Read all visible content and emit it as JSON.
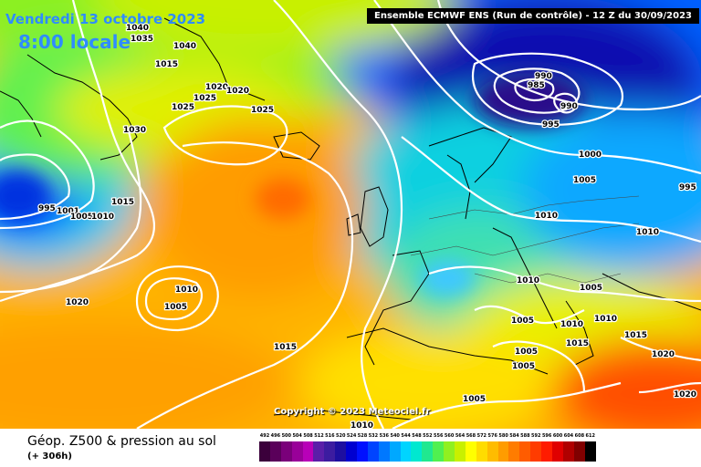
{
  "header": {
    "date": "Vendredi 13 octobre 2023",
    "time": "8:00 locale",
    "model": "Ensemble ECMWF ENS  (Run de contrôle)  - 12 Z du 30/09/2023"
  },
  "copyright": "Copyright © 2023 Meteociel.fr",
  "footer": {
    "title": "Géop. Z500 & pression au sol",
    "subtitle": "(+ 306h)"
  },
  "legend": {
    "values": [
      "492",
      "496",
      "500",
      "504",
      "508",
      "512",
      "516",
      "520",
      "524",
      "528",
      "532",
      "536",
      "540",
      "544",
      "548",
      "552",
      "556",
      "560",
      "564",
      "568",
      "572",
      "576",
      "580",
      "584",
      "588",
      "592",
      "596",
      "600",
      "604",
      "608",
      "612"
    ],
    "colors": [
      "#3b003b",
      "#5a005a",
      "#7a007a",
      "#990099",
      "#b800b8",
      "#5a1ea8",
      "#3c1ca0",
      "#1d0fa0",
      "#0000d0",
      "#0010ff",
      "#0044ff",
      "#0078ff",
      "#00a8ff",
      "#00d4ff",
      "#00e8d0",
      "#20e890",
      "#50f050",
      "#90f020",
      "#c8f000",
      "#ffff00",
      "#ffdc00",
      "#ffbc00",
      "#ff9c00",
      "#ff7c00",
      "#ff5c00",
      "#ff3c00",
      "#ff1c00",
      "#e00000",
      "#b00000",
      "#800000",
      "#000000"
    ]
  },
  "isobars": [
    {
      "text": "1035"
    },
    {
      "text": "1040"
    },
    {
      "text": "1040"
    },
    {
      "text": "1015"
    },
    {
      "text": "1020"
    },
    {
      "text": "1025"
    },
    {
      "text": "1020"
    },
    {
      "text": "1025"
    },
    {
      "text": "1030"
    },
    {
      "text": "1025"
    },
    {
      "text": "1015"
    },
    {
      "text": "995"
    },
    {
      "text": "1001"
    },
    {
      "text": "1005"
    },
    {
      "text": "1010"
    },
    {
      "text": "1020"
    },
    {
      "text": "1010"
    },
    {
      "text": "1005"
    },
    {
      "text": "1015"
    },
    {
      "text": "990"
    },
    {
      "text": "985"
    },
    {
      "text": "990"
    },
    {
      "text": "995"
    },
    {
      "text": "1000"
    },
    {
      "text": "1005"
    },
    {
      "text": "995"
    },
    {
      "text": "1010"
    },
    {
      "text": "1010"
    },
    {
      "text": "1010"
    },
    {
      "text": "1005"
    },
    {
      "text": "1005"
    },
    {
      "text": "1010"
    },
    {
      "text": "1010"
    },
    {
      "text": "1015"
    },
    {
      "text": "1005"
    },
    {
      "text": "1005"
    },
    {
      "text": "1015"
    },
    {
      "text": "1020"
    },
    {
      "text": "1005"
    },
    {
      "text": "1010"
    },
    {
      "text": "1020"
    }
  ]
}
